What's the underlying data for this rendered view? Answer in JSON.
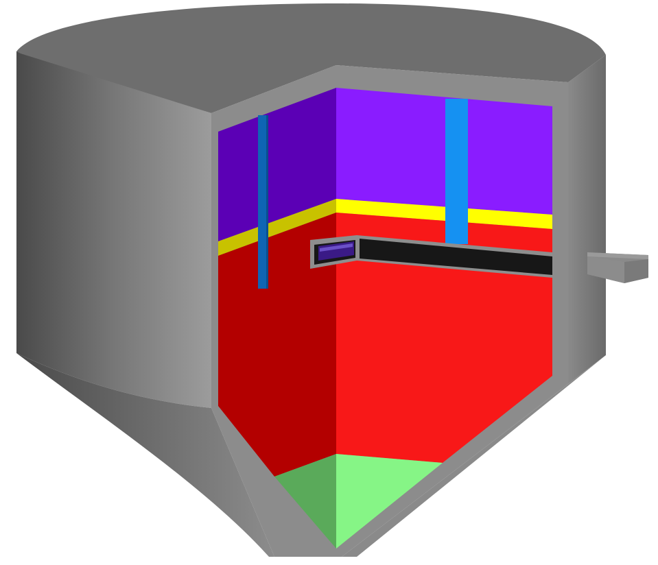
{
  "figure": {
    "kind": "tank-cutaway-diagram",
    "zones": [
      {
        "id": "top-layer",
        "color_left": "#5b00b5",
        "color_right": "#8a1cff"
      },
      {
        "id": "interface-band",
        "color_left": "#c8c200",
        "color_right": "#ffff00"
      },
      {
        "id": "main-layer",
        "color_left": "#b30000",
        "color_right": "#f81818"
      },
      {
        "id": "bottom-cone-layer",
        "color_left": "#5aaa5a",
        "color_right": "#86f586"
      }
    ],
    "shell_colors": {
      "dark": "#4c4c4c",
      "mid": "#7a7a7a",
      "light": "#9a9a9a",
      "top": "#6e6e6e",
      "edge": "#555555"
    },
    "pipe_color": "#1591f2",
    "pipe_dark": "#0f65b4",
    "channel_color": "#171717",
    "channel_frame": "#8e8e8e",
    "icon": "outlet-nozzle-icon"
  }
}
